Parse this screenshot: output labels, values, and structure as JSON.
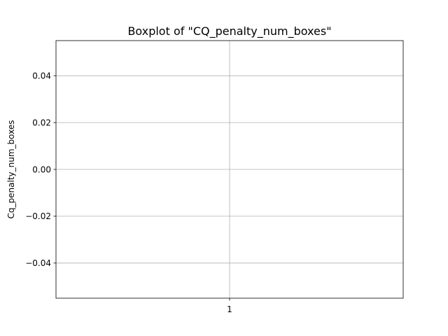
{
  "chart_data": {
    "type": "boxplot",
    "title": "Boxplot of \"CQ_penalty_num_boxes\"",
    "xlabel": "",
    "ylabel": "Cq_penalty_num_boxes",
    "categories": [
      "1"
    ],
    "series": [
      {
        "values": []
      }
    ],
    "ylim": [
      -0.055,
      0.055
    ],
    "yticks": [
      -0.04,
      -0.02,
      0.0,
      0.02,
      0.04
    ],
    "ytick_labels": [
      "−0.04",
      "−0.02",
      "0.00",
      "0.02",
      "0.04"
    ],
    "xlim": [
      0.5,
      1.5
    ],
    "grid": true,
    "colors": {
      "grid": "#b0b0b0",
      "axes": "#000000",
      "background": "#ffffff"
    }
  }
}
